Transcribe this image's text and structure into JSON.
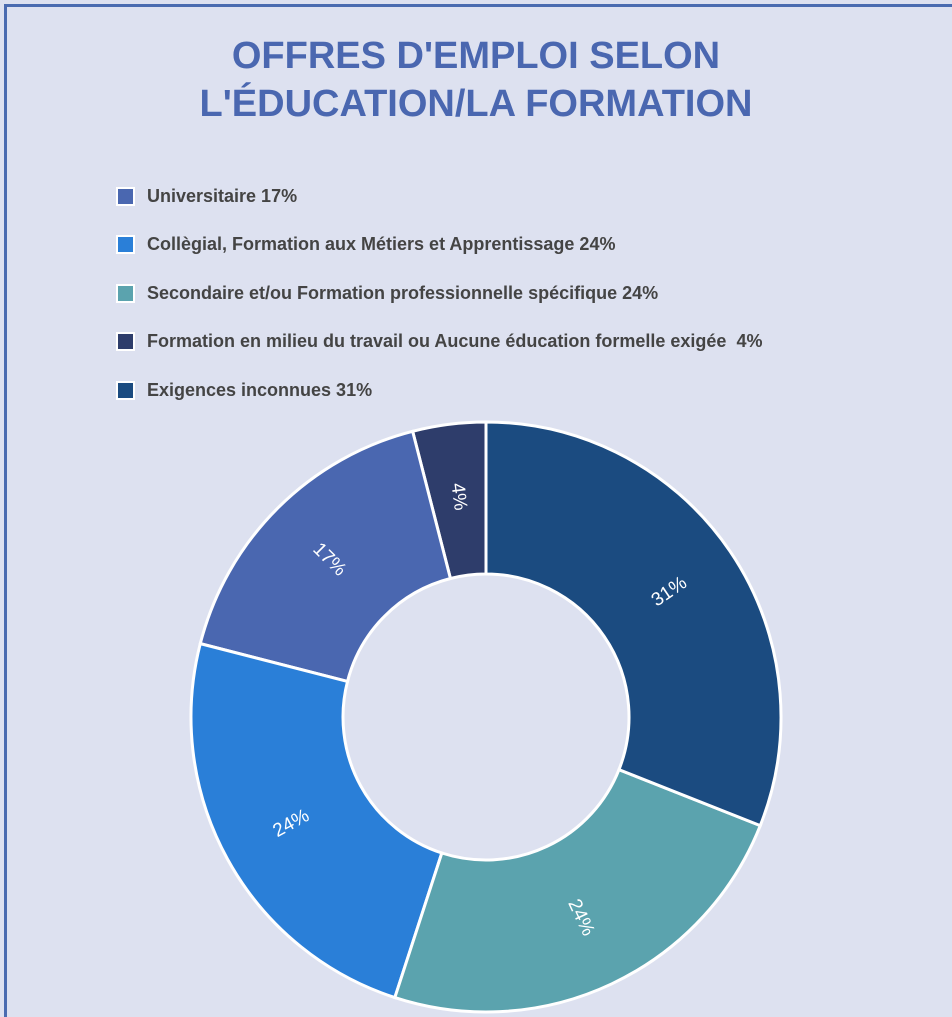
{
  "chart_data": {
    "type": "donut",
    "title": "OFFRES D'EMPLOI SELON L'ÉDUCATION/LA FORMATION",
    "categories": [
      "Universitaire 17%",
      "Collègial, Formation aux Métiers et Apprentissage 24%",
      "Secondaire et/ou Formation professionnelle spécifique 24%",
      "Formation en milieu du travail ou Aucune éducation formelle exigée  4%",
      "Exigences inconnues 31%"
    ],
    "values": [
      17,
      24,
      24,
      4,
      31
    ],
    "value_labels": [
      "17%",
      "24%",
      "24%",
      "4%",
      "31%"
    ],
    "colors": [
      "#4a67b0",
      "#2a7fd8",
      "#5ba3ae",
      "#2e3d6b",
      "#1b4b80"
    ],
    "legend": "top"
  }
}
